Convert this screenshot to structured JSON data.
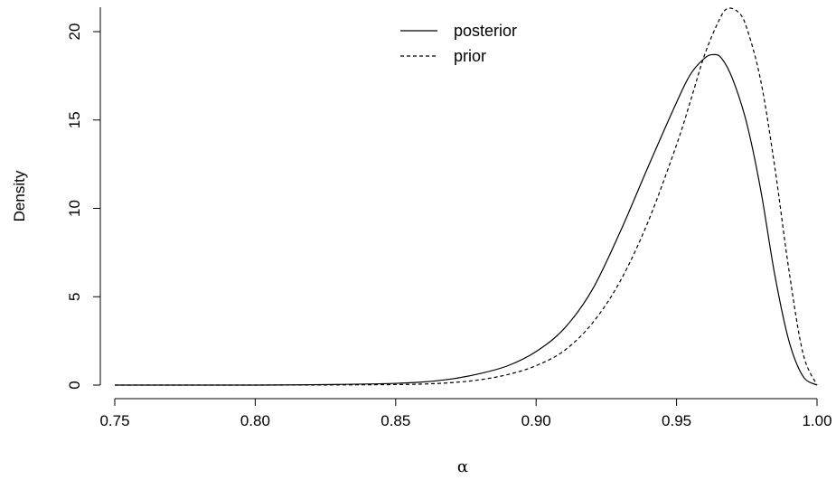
{
  "chart_data": {
    "type": "line",
    "title": "",
    "xlabel": "α",
    "ylabel": "Density",
    "xlim": [
      0.75,
      1.0
    ],
    "ylim": [
      0,
      21.5
    ],
    "x_ticks": [
      0.75,
      0.8,
      0.85,
      0.9,
      0.95,
      1.0
    ],
    "x_tick_labels": [
      "0.75",
      "0.80",
      "0.85",
      "0.90",
      "0.95",
      "1.00"
    ],
    "y_ticks": [
      0,
      5,
      10,
      15,
      20
    ],
    "y_tick_labels": [
      "0",
      "5",
      "10",
      "15",
      "20"
    ],
    "grid": false,
    "legend_position": "top-center",
    "series": [
      {
        "name": "posterior",
        "line_style": "solid",
        "color": "#000000",
        "x": [
          0.75,
          0.8,
          0.82,
          0.84,
          0.85,
          0.86,
          0.87,
          0.88,
          0.89,
          0.9,
          0.91,
          0.92,
          0.93,
          0.94,
          0.95,
          0.955,
          0.96,
          0.963,
          0.966,
          0.97,
          0.975,
          0.98,
          0.985,
          0.99,
          0.995,
          1.0
        ],
        "y": [
          0,
          0,
          0.02,
          0.06,
          0.1,
          0.18,
          0.35,
          0.65,
          1.1,
          1.9,
          3.2,
          5.4,
          8.7,
          12.4,
          16.0,
          17.6,
          18.5,
          18.7,
          18.5,
          17.3,
          14.8,
          11.0,
          6.2,
          2.5,
          0.5,
          0
        ]
      },
      {
        "name": "prior",
        "line_style": "dashed",
        "color": "#000000",
        "x": [
          0.75,
          0.8,
          0.83,
          0.85,
          0.86,
          0.87,
          0.88,
          0.89,
          0.9,
          0.91,
          0.92,
          0.93,
          0.94,
          0.95,
          0.955,
          0.96,
          0.965,
          0.968,
          0.972,
          0.975,
          0.98,
          0.985,
          0.99,
          0.995,
          1.0
        ],
        "y": [
          0,
          0,
          0.01,
          0.03,
          0.06,
          0.14,
          0.3,
          0.6,
          1.1,
          1.95,
          3.5,
          5.9,
          9.3,
          13.6,
          16.1,
          18.7,
          20.6,
          21.3,
          21.1,
          20.2,
          17.2,
          12.3,
          6.5,
          1.8,
          0
        ]
      }
    ]
  }
}
